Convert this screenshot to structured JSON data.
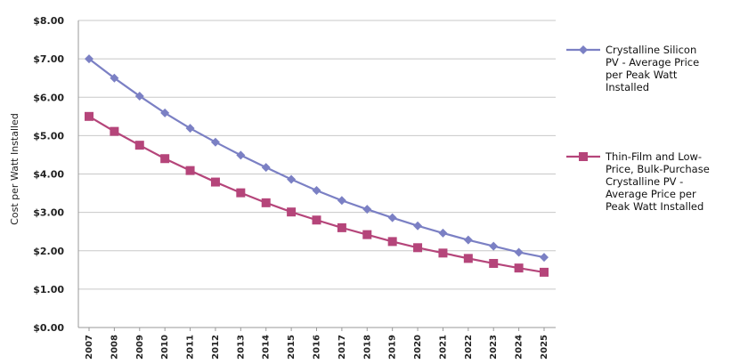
{
  "chart_data": {
    "type": "line",
    "title": "",
    "xlabel": "",
    "ylabel": "Cost per Watt Installed",
    "x": [
      "2007",
      "2008",
      "2009",
      "2010",
      "2011",
      "2012",
      "2013",
      "2014",
      "2015",
      "2016",
      "2017",
      "2018",
      "2019",
      "2020",
      "2021",
      "2022",
      "2023",
      "2024",
      "2025"
    ],
    "ylim": [
      0,
      8
    ],
    "yticks": [
      "$0.00",
      "$1.00",
      "$2.00",
      "$3.00",
      "$4.00",
      "$5.00",
      "$6.00",
      "$7.00",
      "$8.00"
    ],
    "grid": true,
    "legend_position": "right",
    "series": [
      {
        "name_lines": [
          "Crystalline Silicon",
          "PV - Average Price",
          "per Peak Watt",
          "Installed"
        ],
        "color": "#7b80c4",
        "marker": "diamond",
        "values": [
          7.0,
          6.5,
          6.03,
          5.59,
          5.19,
          4.83,
          4.49,
          4.17,
          3.86,
          3.57,
          3.31,
          3.08,
          2.86,
          2.65,
          2.46,
          2.28,
          2.12,
          1.96,
          1.83
        ]
      },
      {
        "name_lines": [
          "Thin-Film and Low-",
          "Price, Bulk-Purchase",
          "Crystalline PV -",
          "Average Price per",
          "Peak Watt Installed"
        ],
        "color": "#b5457a",
        "marker": "square",
        "values": [
          5.5,
          5.11,
          4.75,
          4.4,
          4.09,
          3.79,
          3.51,
          3.25,
          3.01,
          2.8,
          2.6,
          2.42,
          2.24,
          2.08,
          1.94,
          1.8,
          1.67,
          1.55,
          1.44
        ]
      }
    ]
  }
}
